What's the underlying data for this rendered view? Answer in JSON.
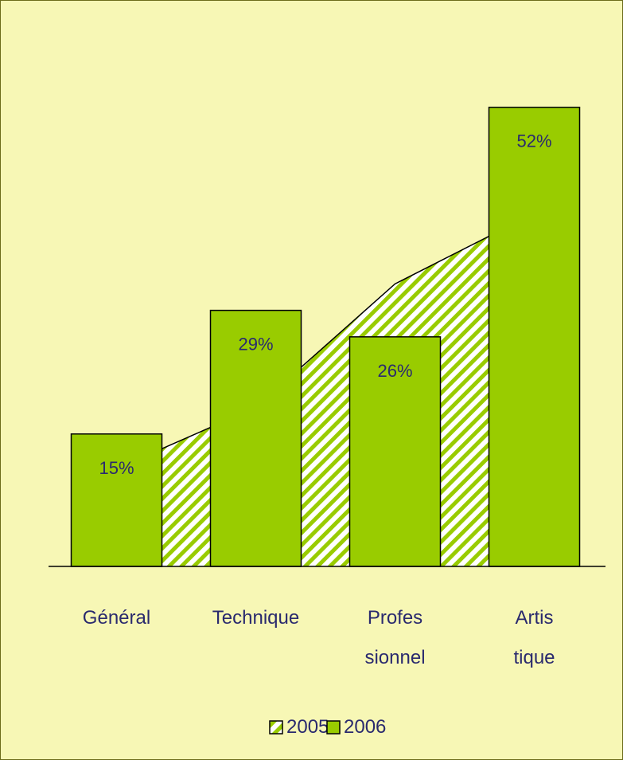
{
  "chart_data": {
    "type": "bar",
    "categories": [
      {
        "lines": [
          "Général"
        ]
      },
      {
        "lines": [
          "Technique"
        ]
      },
      {
        "lines": [
          "Profes",
          "sionnel"
        ]
      },
      {
        "lines": [
          "Artis",
          "tique"
        ]
      }
    ],
    "series": [
      {
        "name": "2005",
        "kind": "area",
        "pattern": "diagonal-hatch",
        "values": [
          11,
          18,
          32,
          40
        ]
      },
      {
        "name": "2006",
        "kind": "bar",
        "values": [
          15,
          29,
          26,
          52
        ],
        "data_labels": [
          "15%",
          "29%",
          "26%",
          "52%"
        ]
      }
    ],
    "ylim": [
      0,
      60
    ],
    "grid": false,
    "legend": {
      "position": "bottom",
      "items": [
        "2005",
        "2006"
      ]
    },
    "colors": {
      "background": "#f7f7b5",
      "bar_fill": "#99cc00",
      "hatch": "#99cc00",
      "outline": "#000000",
      "text": "#2a2a6e"
    }
  }
}
